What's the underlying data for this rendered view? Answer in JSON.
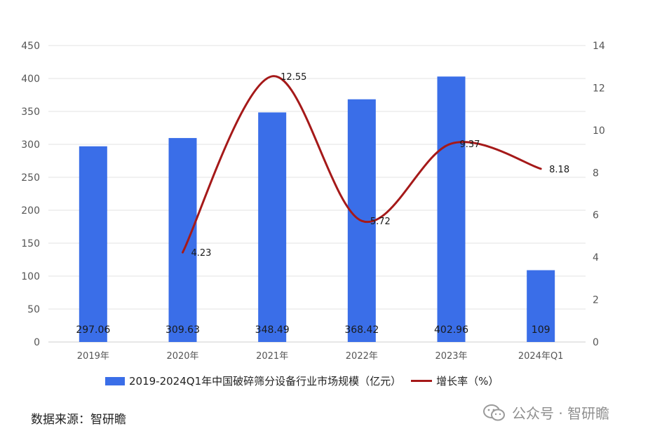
{
  "chart_data": {
    "type": "bar+line",
    "categories": [
      "2019年",
      "2020年",
      "2021年",
      "2022年",
      "2023年",
      "2024年Q1"
    ],
    "series": [
      {
        "name": "2019-2024Q1年中国破碎筛分设备行业市场规模（亿元）",
        "type": "bar",
        "axis": "left",
        "color": "#3a6ee8",
        "values": [
          297.06,
          309.63,
          348.49,
          368.42,
          402.96,
          109
        ],
        "labels": [
          "297.06",
          "309.63",
          "348.49",
          "368.42",
          "402.96",
          "109"
        ]
      },
      {
        "name": "增长率（%）",
        "type": "line",
        "axis": "right",
        "color": "#a51919",
        "values": [
          null,
          4.23,
          12.55,
          5.72,
          9.37,
          8.18
        ],
        "labels": [
          "",
          "4.23",
          "12.55",
          "5.72",
          "9.37",
          "8.18"
        ]
      }
    ],
    "ylim_left": [
      0,
      450
    ],
    "yticks_left": [
      "0",
      "50",
      "100",
      "150",
      "200",
      "250",
      "300",
      "350",
      "400",
      "450"
    ],
    "ylim_right": [
      0,
      14
    ],
    "yticks_right": [
      "0",
      "2",
      "4",
      "6",
      "8",
      "10",
      "12",
      "14"
    ],
    "grid": true,
    "legend_position": "bottom"
  },
  "source_text": "数据来源：智研瞻",
  "watermark_text": "公众号 · 智研瞻"
}
